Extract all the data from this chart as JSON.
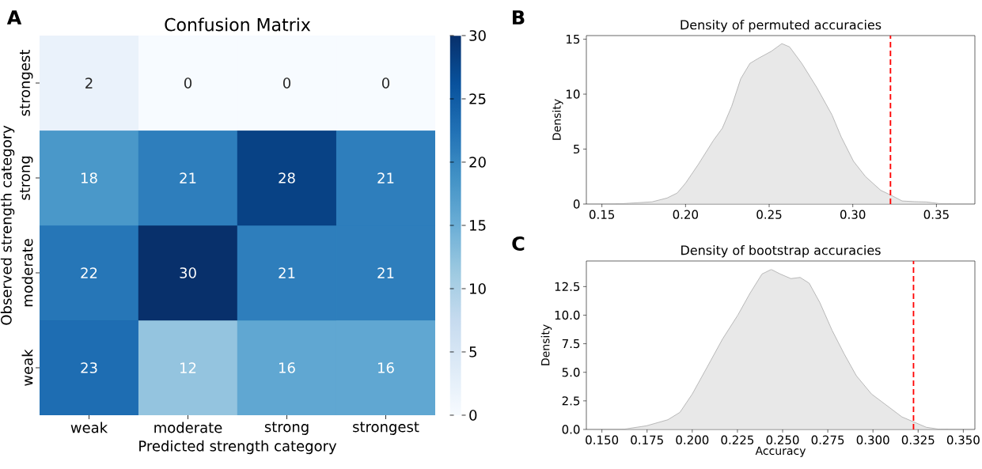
{
  "chart_data": [
    {
      "type": "heatmap",
      "title": "Confusion Matrix",
      "xlabel": "Predicted strength category",
      "ylabel": "Observed strength category",
      "annotations": [
        "A"
      ],
      "categories": [
        "weak",
        "moderate",
        "strong",
        "strongest"
      ],
      "y_categories": [
        "strongest",
        "strong",
        "moderate",
        "weak"
      ],
      "cells": [
        [
          2,
          0,
          0,
          0
        ],
        [
          18,
          21,
          28,
          21
        ],
        [
          22,
          30,
          21,
          21
        ],
        [
          23,
          12,
          16,
          16
        ]
      ],
      "data_labels": true,
      "clim": [
        0,
        30
      ],
      "cticks": [
        0,
        5,
        10,
        15,
        20,
        25,
        30
      ]
    },
    {
      "type": "area",
      "title": "Density of permuted accuracies",
      "ylabel": "Density",
      "annotations": [
        "B"
      ],
      "xlim": [
        0.1407,
        0.373
      ],
      "ylim": [
        0,
        15.33
      ],
      "xticks": [
        0.15,
        {
          "value": 0.2,
          "label": "0.20"
        },
        0.25,
        {
          "value": 0.3,
          "label": "0.30"
        },
        0.35
      ],
      "yticks": [
        0,
        5,
        10,
        15
      ],
      "x": [
        0.1585,
        0.18,
        0.189,
        0.195,
        0.2,
        0.2076,
        0.2167,
        0.222,
        0.2276,
        0.233,
        0.2385,
        0.244,
        0.2513,
        0.2576,
        0.2622,
        0.2695,
        0.2785,
        0.2876,
        0.2931,
        0.3004,
        0.3076,
        0.3167,
        0.3225,
        0.3295,
        0.3367,
        0.344,
        0.3513,
        0.3585
      ],
      "series": [
        {
          "color": "#aaaaaa",
          "values": [
            0,
            0.2,
            0.55,
            1.0,
            1.9,
            3.6,
            5.8,
            6.9,
            8.9,
            11.4,
            12.8,
            13.3,
            13.9,
            14.6,
            14.3,
            12.8,
            10.6,
            8.1,
            6.1,
            3.9,
            2.5,
            1.25,
            0.83,
            0.28,
            0.22,
            0.19,
            0.05,
            0
          ]
        }
      ],
      "ref_lines": [
        {
          "axis": "x",
          "value": 0.3225,
          "color": "#ff0000",
          "line_style": "dashed"
        }
      ]
    },
    {
      "type": "area",
      "title": "Density of bootstrap accuracies",
      "xlabel": "Accuracy",
      "ylabel": "Density",
      "annotations": [
        "C"
      ],
      "xlim": [
        0.1414,
        0.3564
      ],
      "ylim": [
        0,
        14.74
      ],
      "xticks": [
        {
          "value": 0.15,
          "label": "0.150"
        },
        0.175,
        {
          "value": 0.2,
          "label": "0.200"
        },
        0.225,
        {
          "value": 0.25,
          "label": "0.250"
        },
        0.275,
        {
          "value": 0.3,
          "label": "0.300"
        },
        0.325,
        {
          "value": 0.35,
          "label": "0.350"
        }
      ],
      "yticks": [
        {
          "value": 0,
          "label": "0.0"
        },
        2.5,
        {
          "value": 5,
          "label": "5.0"
        },
        7.5,
        {
          "value": 10,
          "label": "10.0"
        },
        12.5
      ],
      "x": [
        0.1613,
        0.1747,
        0.1865,
        0.1932,
        0.2,
        0.2084,
        0.2167,
        0.2252,
        0.2319,
        0.2386,
        0.2437,
        0.2487,
        0.2546,
        0.2597,
        0.2647,
        0.2706,
        0.2773,
        0.2841,
        0.2908,
        0.2992,
        0.3093,
        0.316,
        0.3224,
        0.3295,
        0.3362,
        0.3413
      ],
      "series": [
        {
          "color": "#aaaaaa",
          "values": [
            0,
            0.32,
            0.85,
            1.5,
            3.1,
            5.5,
            7.9,
            10.0,
            11.9,
            13.6,
            14.0,
            13.6,
            13.2,
            13.3,
            12.8,
            11.1,
            8.7,
            6.6,
            4.7,
            3.1,
            1.9,
            1.1,
            0.67,
            0.19,
            0.03,
            0
          ]
        }
      ],
      "ref_lines": [
        {
          "axis": "x",
          "value": 0.3224,
          "color": "#ff0000",
          "line_style": "dashed"
        }
      ]
    }
  ]
}
